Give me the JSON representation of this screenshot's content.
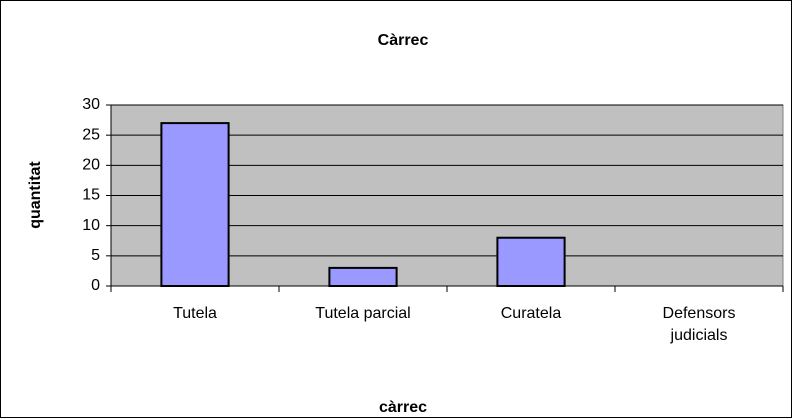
{
  "chart_data": {
    "type": "bar",
    "title": "Càrrec",
    "x_label": "càrrec",
    "y_label": "quantitat",
    "categories": [
      "Tutela",
      "Tutela parcial",
      "Curatela",
      "Defensors judicials"
    ],
    "values": [
      27,
      3,
      8,
      0
    ],
    "color": "#9999ff",
    "ylim": [
      0,
      30
    ],
    "yticks": [
      0,
      5,
      10,
      15,
      20,
      25,
      30
    ],
    "grid": true
  }
}
